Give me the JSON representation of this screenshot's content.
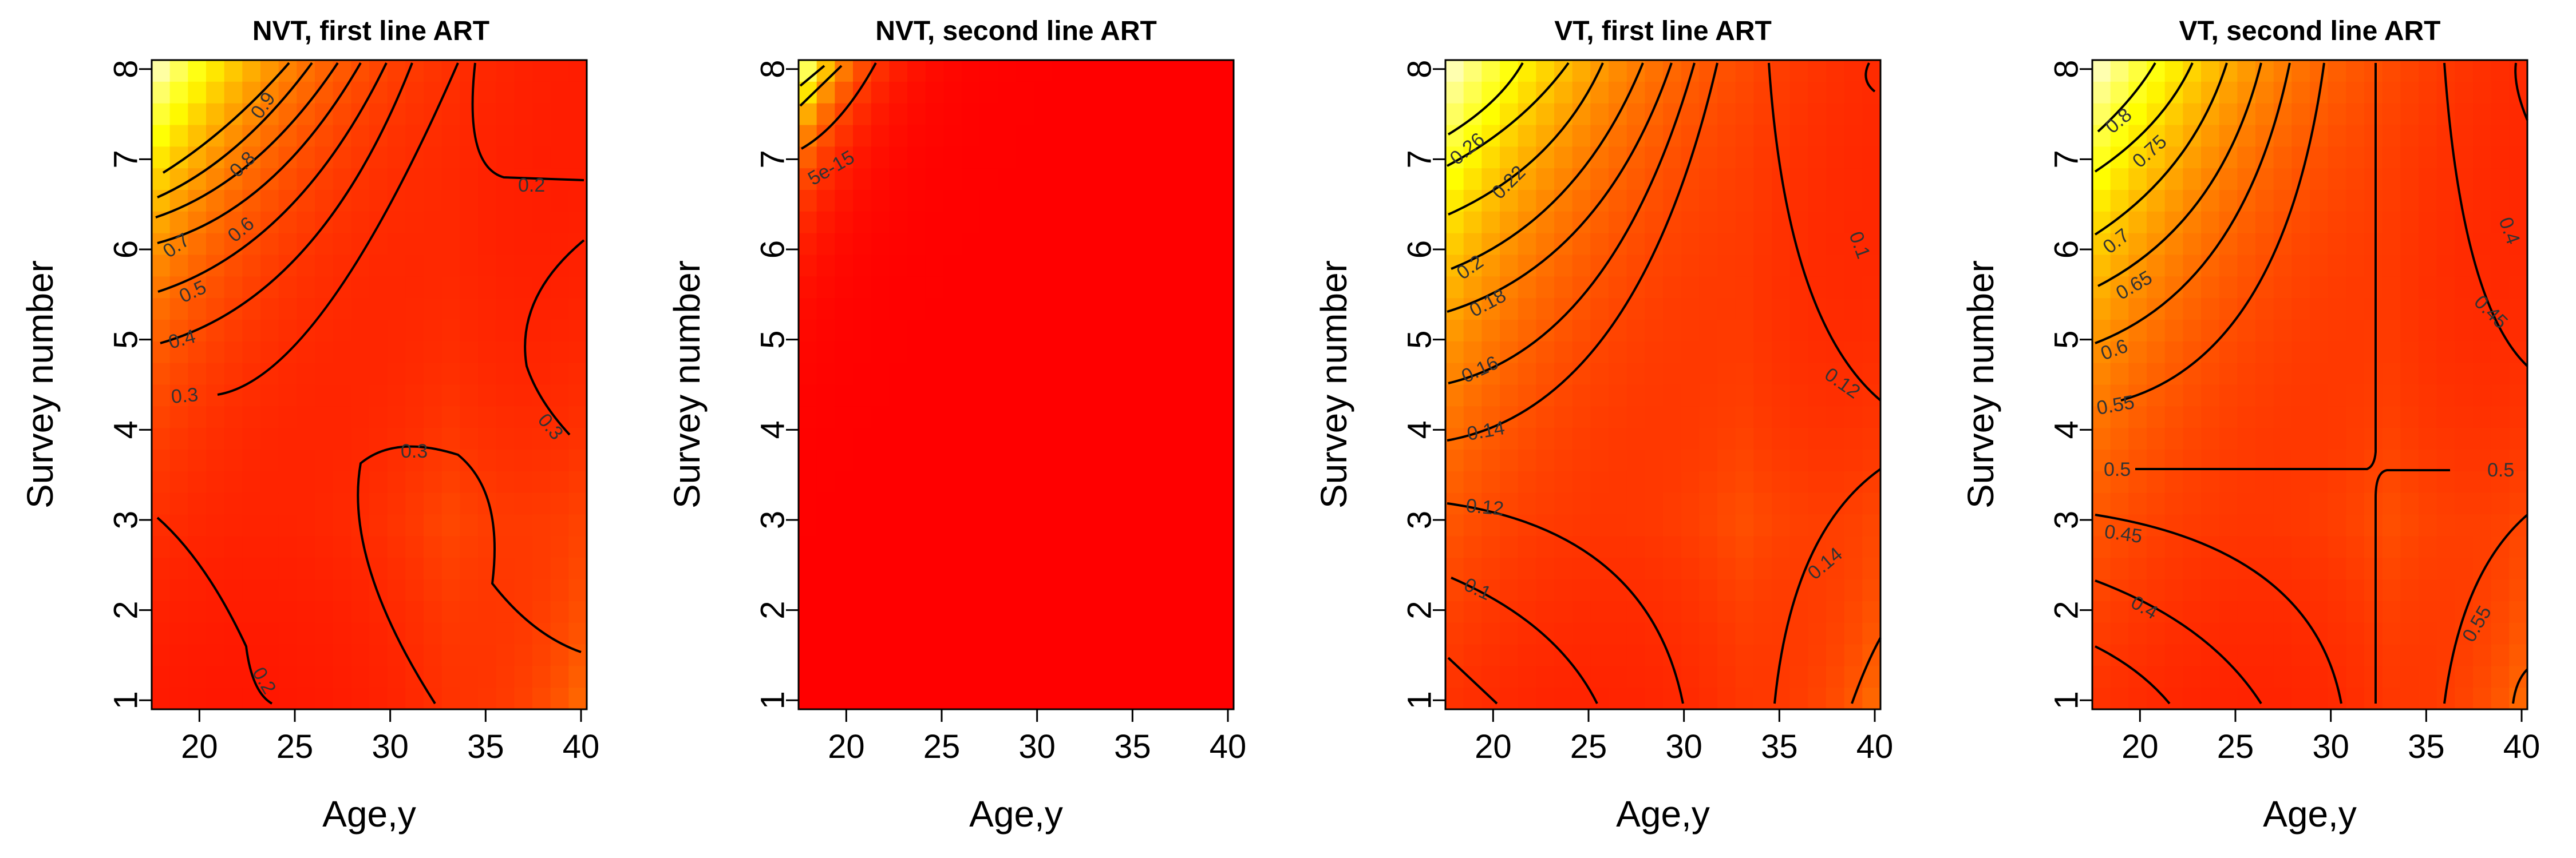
{
  "chart_data": [
    {
      "type": "heatmap",
      "title": "NVT, first line ART",
      "xlabel": "Age,y",
      "ylabel": "Survey number",
      "xlim": [
        17.5,
        40.3
      ],
      "ylim": [
        0.9,
        8.1
      ],
      "x_ticks": [
        "20",
        "25",
        "30",
        "35",
        "40"
      ],
      "y_ticks": [
        "1",
        "2",
        "3",
        "4",
        "5",
        "6",
        "7",
        "8"
      ],
      "color_scale": "heat (red → orange → yellow → white)",
      "contour_labels": [
        "0.9",
        "0.8",
        "0.7",
        "0.6",
        "0.5",
        "0.4",
        "0.3",
        "0.2",
        "0.3",
        "0.3",
        "0.2"
      ],
      "surface": {
        "base": 0.25,
        "peak": 1.0,
        "peak_at": [
          17.5,
          8
        ],
        "decay": [
          6.0,
          2.0
        ]
      }
    },
    {
      "type": "heatmap",
      "title": "NVT, second line ART",
      "xlabel": "Age,y",
      "ylabel": "Survey number",
      "xlim": [
        17.5,
        40.3
      ],
      "ylim": [
        0.9,
        8.1
      ],
      "x_ticks": [
        "20",
        "25",
        "30",
        "35",
        "40"
      ],
      "y_ticks": [
        "1",
        "2",
        "3",
        "4",
        "5",
        "6",
        "7",
        "8"
      ],
      "color_scale": "heat (red → orange → yellow → white)",
      "contour_labels": [
        "5e-15"
      ],
      "surface": {
        "base": 0.0,
        "peak": 1.0,
        "peak_at": [
          17.5,
          8
        ],
        "decay": [
          2.0,
          0.8
        ]
      }
    },
    {
      "type": "heatmap",
      "title": "VT, first line ART",
      "xlabel": "Age,y",
      "ylabel": "Survey number",
      "xlim": [
        17.5,
        40.3
      ],
      "ylim": [
        0.9,
        8.1
      ],
      "x_ticks": [
        "20",
        "25",
        "30",
        "35",
        "40"
      ],
      "y_ticks": [
        "1",
        "2",
        "3",
        "4",
        "5",
        "6",
        "7",
        "8"
      ],
      "color_scale": "heat (red → orange → yellow → white)",
      "contour_labels": [
        "0.26",
        "0.22",
        "0.2",
        "0.18",
        "0.16",
        "0.14",
        "0.12",
        "0.1",
        "0.1",
        "0.12",
        "0.14"
      ],
      "surface": {
        "base": 0.1,
        "peak": 0.29,
        "peak_at": [
          17.5,
          8
        ],
        "decay": [
          8.0,
          3.0
        ]
      }
    },
    {
      "type": "heatmap",
      "title": "VT, second line ART",
      "xlabel": "Age,y",
      "ylabel": "Survey number",
      "xlim": [
        17.5,
        40.3
      ],
      "ylim": [
        0.9,
        8.1
      ],
      "x_ticks": [
        "20",
        "25",
        "30",
        "35",
        "40"
      ],
      "y_ticks": [
        "1",
        "2",
        "3",
        "4",
        "5",
        "6",
        "7",
        "8"
      ],
      "color_scale": "heat (red → orange → yellow → white)",
      "contour_labels": [
        "0.8",
        "0.75",
        "0.7",
        "0.65",
        "0.6",
        "0.55",
        "0.5",
        "0.45",
        "0.4",
        "0.4",
        "0.45",
        "0.5",
        "0.55"
      ],
      "surface": {
        "base": 0.45,
        "peak": 0.85,
        "peak_at": [
          17.5,
          8
        ],
        "decay": [
          8.0,
          3.0
        ]
      }
    }
  ]
}
